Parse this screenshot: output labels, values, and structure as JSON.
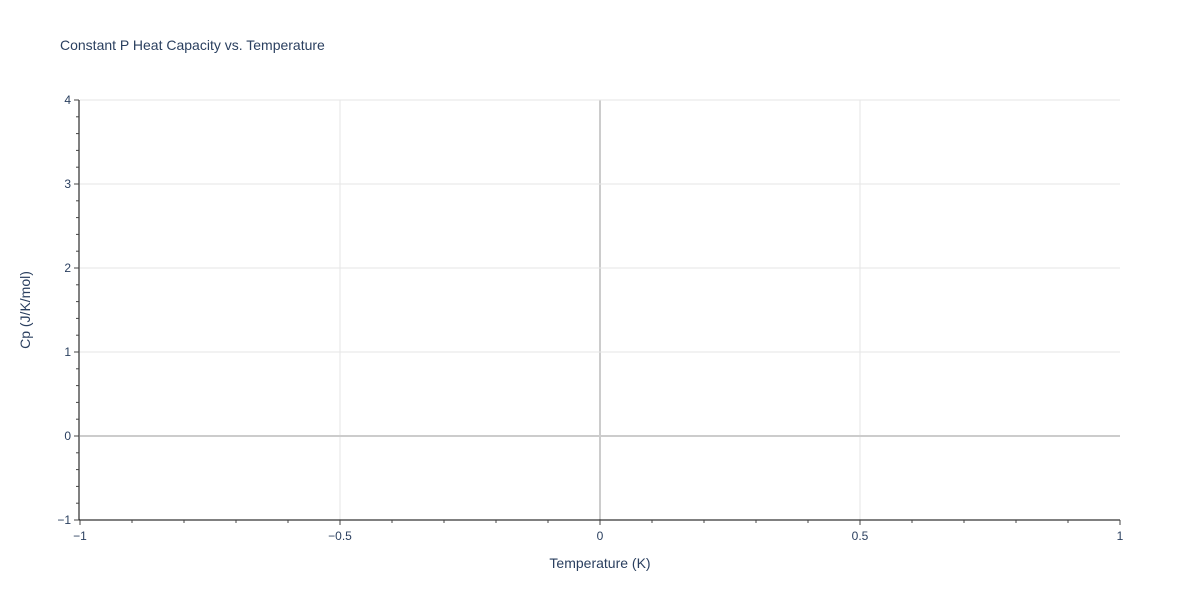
{
  "chart_data": {
    "type": "line",
    "title": "Constant P Heat Capacity vs. Temperature",
    "xlabel": "Temperature (K)",
    "ylabel": "Cp (J/K/mol)",
    "xlim": [
      -1,
      1
    ],
    "ylim": [
      -1,
      4
    ],
    "xticks": [
      -1,
      -0.5,
      0,
      0.5,
      1
    ],
    "xtick_labels": [
      "−1",
      "−0.5",
      "0",
      "0.5",
      "1"
    ],
    "yticks": [
      -1,
      0,
      1,
      2,
      3,
      4
    ],
    "ytick_labels": [
      "−1",
      "0",
      "1",
      "2",
      "3",
      "4"
    ],
    "grid": true,
    "series": [],
    "colors": {
      "grid": "#e6e6e6",
      "zeroline": "#cccccc",
      "axis": "#000000",
      "text": "#2a3f5f",
      "title": "#444444"
    }
  }
}
